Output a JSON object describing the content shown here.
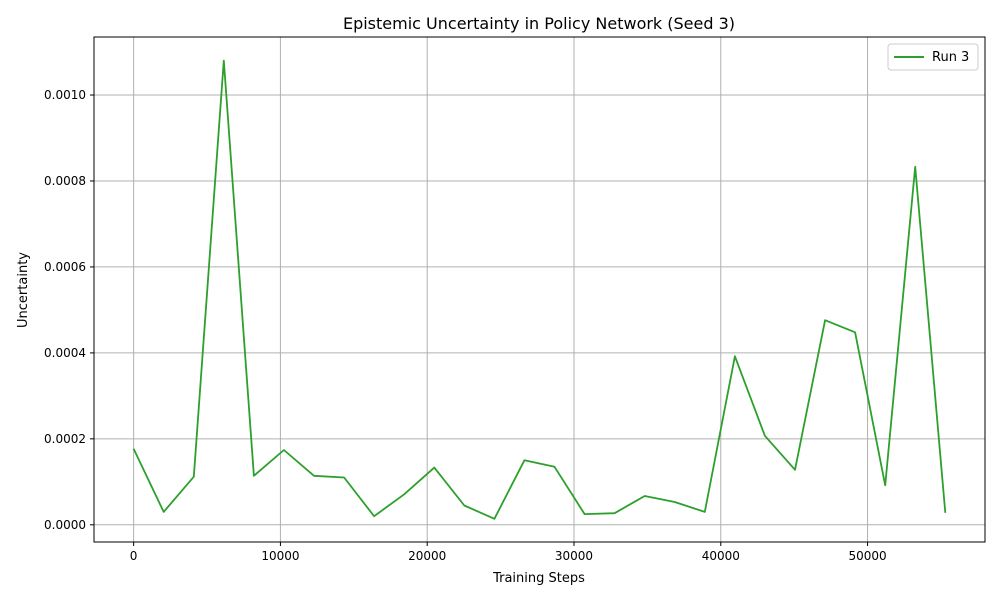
{
  "chart_data": {
    "type": "line",
    "title": "Epistemic Uncertainty in Policy Network (Seed 3)",
    "xlabel": "Training Steps",
    "ylabel": "Uncertainty",
    "xlim": [
      -2700,
      58000
    ],
    "ylim": [
      -4e-05,
      0.001135
    ],
    "xticks": [
      0,
      10000,
      20000,
      30000,
      40000,
      50000
    ],
    "xtick_labels": [
      "0",
      "10000",
      "20000",
      "30000",
      "40000",
      "50000"
    ],
    "yticks": [
      0.0,
      0.0002,
      0.0004,
      0.0006,
      0.0008,
      0.001
    ],
    "ytick_labels": [
      "0.0000",
      "0.0002",
      "0.0004",
      "0.0006",
      "0.0008",
      "0.0010"
    ],
    "grid": true,
    "legend_position": "top-right",
    "series": [
      {
        "name": "Run 3",
        "color": "#2ca02c",
        "x": [
          0,
          2048,
          4096,
          6144,
          8192,
          10240,
          12288,
          14336,
          16384,
          18432,
          20480,
          22528,
          24576,
          26624,
          28672,
          30720,
          32768,
          34816,
          36864,
          38912,
          40960,
          43008,
          45056,
          47104,
          49152,
          51200,
          53248,
          55296
        ],
        "y": [
          0.000177,
          3e-05,
          0.000112,
          0.00108,
          0.000114,
          0.000174,
          0.000114,
          0.00011,
          2e-05,
          7.1e-05,
          0.000133,
          4.5e-05,
          1.4e-05,
          0.00015,
          0.000135,
          2.5e-05,
          2.7e-05,
          6.7e-05,
          5.3e-05,
          3e-05,
          0.000392,
          0.000207,
          0.000128,
          0.000476,
          0.000448,
          9.2e-05,
          0.000833,
          2.8e-05
        ]
      }
    ]
  }
}
